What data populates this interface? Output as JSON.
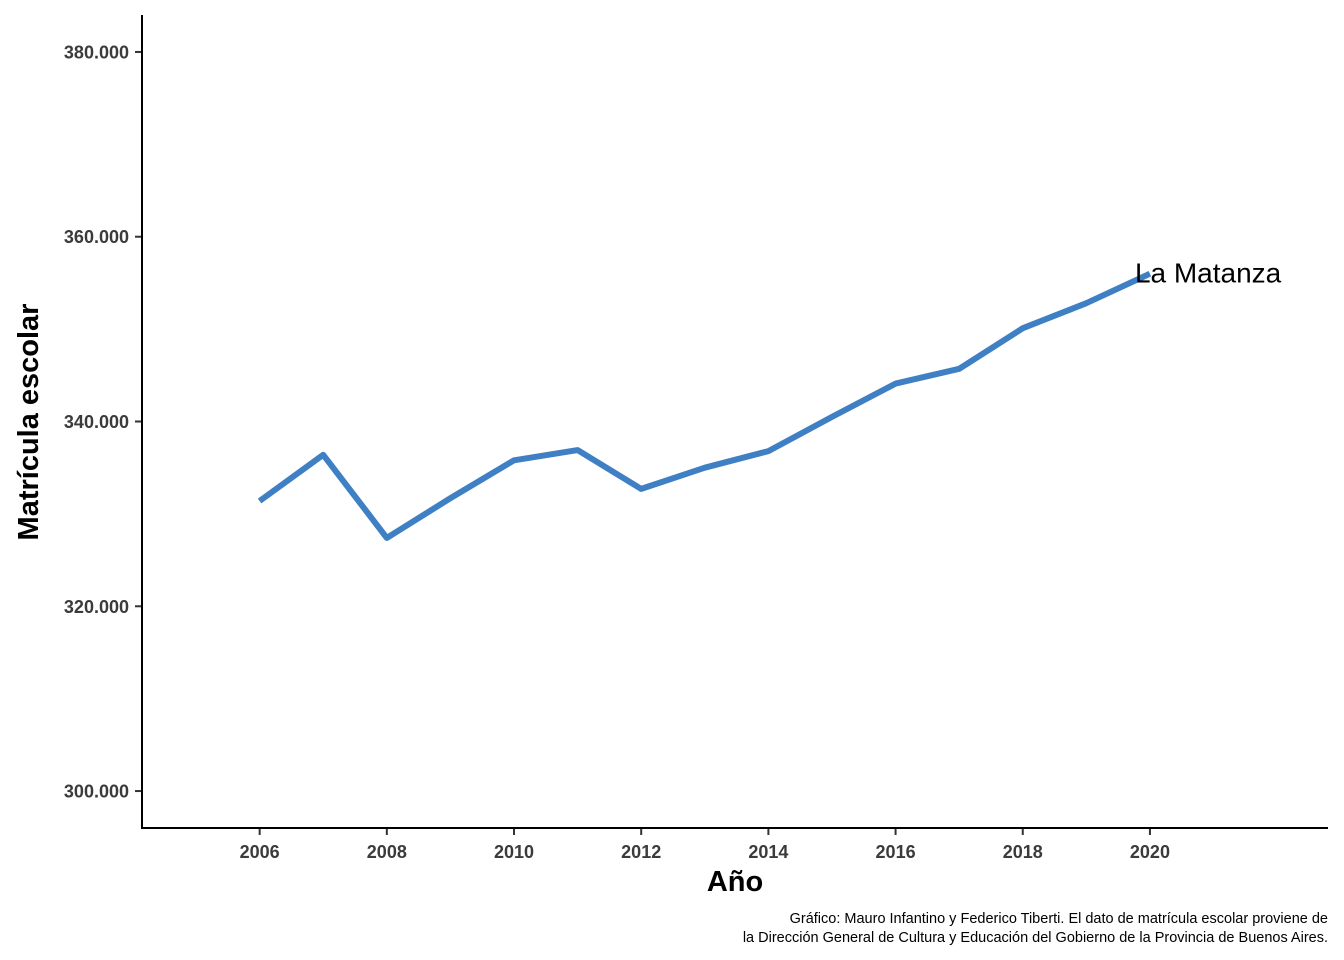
{
  "chart_data": {
    "type": "line",
    "x": [
      2006,
      2007,
      2008,
      2009,
      2010,
      2011,
      2012,
      2013,
      2014,
      2015,
      2016,
      2017,
      2018,
      2019,
      2020
    ],
    "series": [
      {
        "name": "La Matanza",
        "values": [
          331400,
          336400,
          327400,
          331700,
          335800,
          336900,
          332700,
          335000,
          336800,
          340500,
          344100,
          345700,
          350100,
          352800,
          356000
        ]
      }
    ],
    "xlabel": "Año",
    "ylabel": "Matrícula escolar",
    "xlim": [
      2004.15,
      2022.8
    ],
    "ylim": [
      296000,
      384000
    ],
    "x_ticks": [
      2006,
      2008,
      2010,
      2012,
      2014,
      2016,
      2018,
      2020
    ],
    "x_tick_labels": [
      "2006",
      "2008",
      "2010",
      "2012",
      "2014",
      "2016",
      "2018",
      "2020"
    ],
    "y_ticks": [
      300000,
      320000,
      340000,
      360000,
      380000
    ],
    "y_tick_labels": [
      "300.000",
      "320.000",
      "340.000",
      "360.000",
      "380.000"
    ],
    "grid": false,
    "legend": "none",
    "line_color": "#3f7fc4",
    "caption": [
      "Gráfico: Mauro Infantino y Federico Tiberti. El dato de matrícula escolar proviene de",
      "la Dirección General de Cultura y Educación del Gobierno de la Provincia de Buenos Aires."
    ]
  }
}
